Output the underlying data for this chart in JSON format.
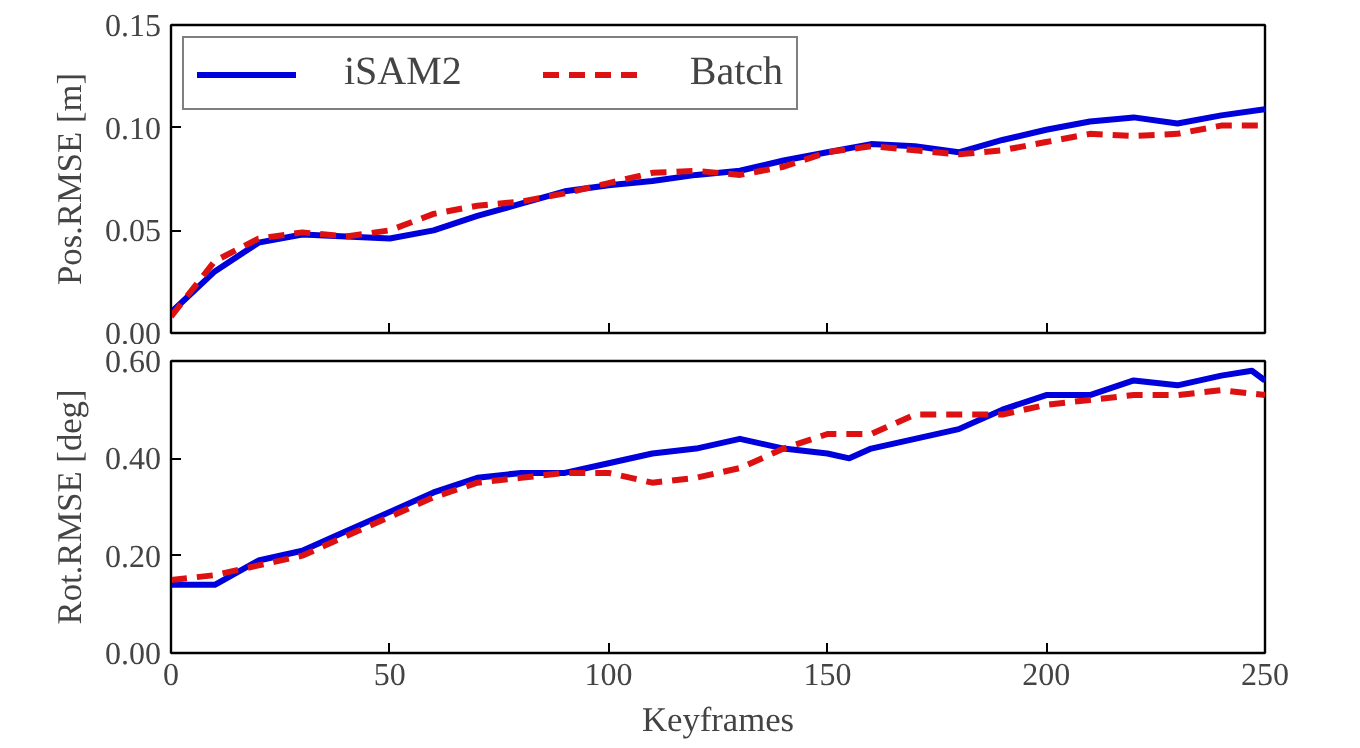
{
  "chart_data": [
    {
      "type": "line",
      "ylabel": "Pos.RMSE [m]",
      "x": [
        0,
        10,
        20,
        30,
        40,
        50,
        60,
        70,
        80,
        90,
        100,
        110,
        120,
        130,
        140,
        150,
        160,
        170,
        180,
        190,
        200,
        210,
        220,
        230,
        240,
        250
      ],
      "series": [
        {
          "name": "iSAM2",
          "color": "#0000dd",
          "line_style": "solid",
          "values": [
            0.01,
            0.03,
            0.044,
            0.048,
            0.047,
            0.046,
            0.05,
            0.057,
            0.063,
            0.069,
            0.072,
            0.074,
            0.077,
            0.079,
            0.084,
            0.088,
            0.092,
            0.091,
            0.088,
            0.094,
            0.099,
            0.103,
            0.105,
            0.102,
            0.106,
            0.109
          ]
        },
        {
          "name": "Batch",
          "color": "#dd1111",
          "line_style": "dashed",
          "values": [
            0.008,
            0.035,
            0.046,
            0.049,
            0.047,
            0.05,
            0.058,
            0.062,
            0.064,
            0.068,
            0.073,
            0.078,
            0.079,
            0.077,
            0.081,
            0.088,
            0.091,
            0.089,
            0.087,
            0.089,
            0.093,
            0.097,
            0.096,
            0.097,
            0.101,
            0.101
          ]
        }
      ],
      "xlim": [
        0,
        250
      ],
      "xticks": [
        0,
        50,
        100,
        150,
        200,
        250
      ],
      "ylim": [
        0,
        0.15
      ],
      "yticks": [
        {
          "value": 0,
          "label": "0.00"
        },
        0.05,
        {
          "value": 0.1,
          "label": "0.10"
        },
        0.15
      ],
      "tick_labels": "y",
      "legend": "top left",
      "grid": false
    },
    {
      "type": "line",
      "xlabel": "Keyframes",
      "ylabel": "Rot.RMSE [deg]",
      "series": [
        {
          "color": "#0000dd",
          "line_style": "solid",
          "x": [
            0,
            5,
            10,
            20,
            30,
            40,
            50,
            60,
            70,
            80,
            90,
            100,
            110,
            120,
            130,
            140,
            150,
            155,
            160,
            170,
            180,
            190,
            200,
            210,
            220,
            230,
            240,
            247,
            250
          ],
          "values": [
            0.14,
            0.14,
            0.14,
            0.19,
            0.21,
            0.25,
            0.29,
            0.33,
            0.36,
            0.37,
            0.37,
            0.39,
            0.41,
            0.42,
            0.44,
            0.42,
            0.41,
            0.4,
            0.42,
            0.44,
            0.46,
            0.5,
            0.53,
            0.53,
            0.56,
            0.55,
            0.57,
            0.58,
            0.56
          ]
        },
        {
          "color": "#dd1111",
          "line_style": "dashed",
          "x": [
            0,
            10,
            20,
            30,
            40,
            50,
            60,
            70,
            80,
            90,
            100,
            110,
            120,
            130,
            140,
            150,
            160,
            170,
            180,
            190,
            200,
            210,
            220,
            230,
            240,
            250
          ],
          "values": [
            0.15,
            0.16,
            0.18,
            0.2,
            0.24,
            0.28,
            0.32,
            0.35,
            0.36,
            0.37,
            0.37,
            0.35,
            0.36,
            0.38,
            0.42,
            0.45,
            0.45,
            0.49,
            0.49,
            0.49,
            0.51,
            0.52,
            0.53,
            0.53,
            0.54,
            0.53
          ]
        }
      ],
      "xlim": [
        0,
        250
      ],
      "xticks": [
        0,
        50,
        100,
        150,
        200,
        250
      ],
      "ylim": [
        0,
        0.6
      ],
      "yticks": [
        {
          "value": 0,
          "label": "0.00"
        },
        {
          "value": 0.2,
          "label": "0.20"
        },
        {
          "value": 0.4,
          "label": "0.40"
        },
        {
          "value": 0.6,
          "label": "0.60"
        }
      ],
      "grid": false
    }
  ]
}
